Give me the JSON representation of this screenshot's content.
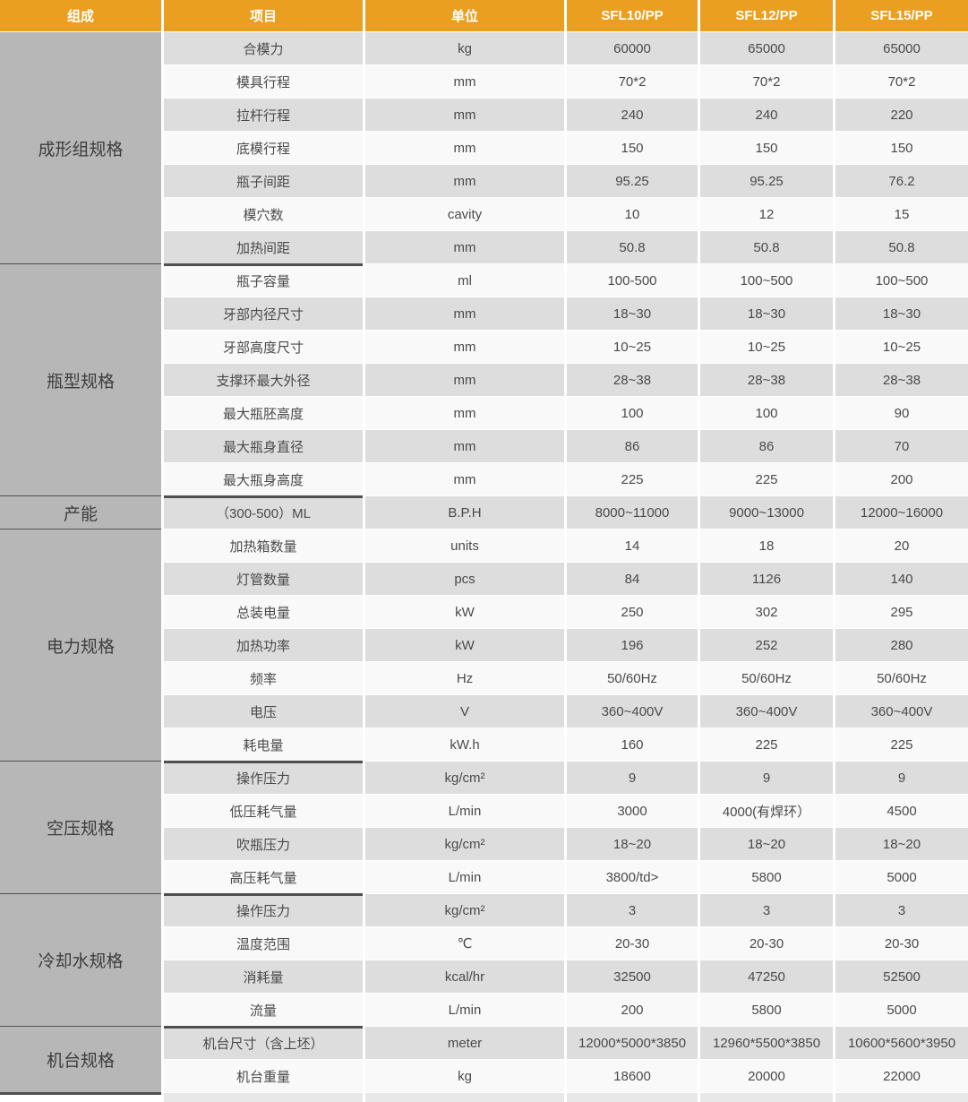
{
  "colors": {
    "header_bg": "#EA9F20",
    "header_text": "#FFFFFF",
    "group_bg": "#B7B7B7",
    "row_odd_bg": "#DDDDDD",
    "row_even_bg": "#F9F9F9",
    "text": "#4A4A4A",
    "divider": "#4F4F4F"
  },
  "table": {
    "columns": [
      "组成",
      "项目",
      "单位",
      "SFL10/PP",
      "SFL12/PP",
      "SFL15/PP"
    ],
    "sections": [
      {
        "group": "成形组规格",
        "divider": "group-and-item",
        "rows": [
          {
            "item": "合模力",
            "unit": "kg",
            "values": [
              "60000",
              "65000",
              "65000"
            ]
          },
          {
            "item": "模具行程",
            "unit": "mm",
            "values": [
              "70*2",
              "70*2",
              "70*2"
            ]
          },
          {
            "item": "拉杆行程",
            "unit": "mm",
            "values": [
              "240",
              "240",
              "220"
            ]
          },
          {
            "item": "底模行程",
            "unit": "mm",
            "values": [
              "150",
              "150",
              "150"
            ]
          },
          {
            "item": "瓶子间距",
            "unit": "mm",
            "values": [
              "95.25",
              "95.25",
              "76.2"
            ]
          },
          {
            "item": "模穴数",
            "unit": "cavity",
            "values": [
              "10",
              "12",
              "15"
            ]
          },
          {
            "item": "加热间距",
            "unit": "mm",
            "values": [
              "50.8",
              "50.8",
              "50.8"
            ]
          }
        ]
      },
      {
        "group": "瓶型规格",
        "divider": "group-and-item",
        "rows": [
          {
            "item": "瓶子容量",
            "unit": "ml",
            "values": [
              "100-500",
              "100~500",
              "100~500"
            ]
          },
          {
            "item": "牙部内径尺寸",
            "unit": "mm",
            "values": [
              "18~30",
              "18~30",
              "18~30"
            ]
          },
          {
            "item": "牙部高度尺寸",
            "unit": "mm",
            "values": [
              "10~25",
              "10~25",
              "10~25"
            ]
          },
          {
            "item": "支撑环最大外径",
            "unit": "mm",
            "values": [
              "28~38",
              "28~38",
              "28~38"
            ]
          },
          {
            "item": "最大瓶胚高度",
            "unit": "mm",
            "values": [
              "100",
              "100",
              "90"
            ]
          },
          {
            "item": "最大瓶身直径",
            "unit": "mm",
            "values": [
              "86",
              "86",
              "70"
            ]
          },
          {
            "item": "最大瓶身高度",
            "unit": "mm",
            "values": [
              "225",
              "225",
              "200"
            ]
          }
        ]
      },
      {
        "group": "产能",
        "divider": "group-only",
        "rows": [
          {
            "item": "（300-500）ML",
            "unit": "B.P.H",
            "values": [
              "8000~11000",
              "9000~13000",
              "12000~16000"
            ]
          }
        ]
      },
      {
        "group": "电力规格",
        "divider": "group-and-item",
        "rows": [
          {
            "item": "加热箱数量",
            "unit": "units",
            "values": [
              "14",
              "18",
              "20"
            ]
          },
          {
            "item": "灯管数量",
            "unit": "pcs",
            "values": [
              "84",
              "1126",
              "140"
            ]
          },
          {
            "item": "总装电量",
            "unit": "kW",
            "values": [
              "250",
              "302",
              "295"
            ]
          },
          {
            "item": "加热功率",
            "unit": "kW",
            "values": [
              "196",
              "252",
              "280"
            ]
          },
          {
            "item": "频率",
            "unit": "Hz",
            "values": [
              "50/60Hz",
              "50/60Hz",
              "50/60Hz"
            ]
          },
          {
            "item": "电压",
            "unit": "V",
            "values": [
              "360~400V",
              "360~400V",
              "360~400V"
            ]
          },
          {
            "item": "耗电量",
            "unit": "kW.h",
            "values": [
              "160",
              "225",
              "225"
            ]
          }
        ]
      },
      {
        "group": "空压规格",
        "divider": "group-and-item",
        "rows": [
          {
            "item": "操作压力",
            "unit": "kg/cm²",
            "values": [
              "9",
              "9",
              "9"
            ]
          },
          {
            "item": "低压耗气量",
            "unit": "L/min",
            "values": [
              "3000",
              "4000(有焊环）",
              "4500"
            ]
          },
          {
            "item": "吹瓶压力",
            "unit": "kg/cm²",
            "values": [
              "18~20",
              "18~20",
              "18~20"
            ]
          },
          {
            "item": "高压耗气量",
            "unit": "L/min",
            "values": [
              "3800/td>",
              "5800",
              "5000"
            ]
          }
        ]
      },
      {
        "group": "冷却水规格",
        "divider": "group-and-item",
        "rows": [
          {
            "item": "操作压力",
            "unit": "kg/cm²",
            "values": [
              "3",
              "3",
              "3"
            ]
          },
          {
            "item": "温度范围",
            "unit": "℃",
            "values": [
              "20-30",
              "20-30",
              "20-30"
            ]
          },
          {
            "item": "消耗量",
            "unit": "kcal/hr",
            "values": [
              "32500",
              "47250",
              "52500"
            ]
          },
          {
            "item": "流量",
            "unit": "L/min",
            "values": [
              "200",
              "5800",
              "5000"
            ]
          }
        ]
      },
      {
        "group": "机台规格",
        "divider": "group-only",
        "rows": [
          {
            "item": "机台尺寸（含上坯）",
            "unit": "meter",
            "values": [
              "12000*5000*3850",
              "12960*5500*3850",
              "10600*5600*3950"
            ]
          },
          {
            "item": "机台重量",
            "unit": "kg",
            "values": [
              "18600",
              "20000",
              "22000"
            ]
          }
        ]
      }
    ]
  }
}
